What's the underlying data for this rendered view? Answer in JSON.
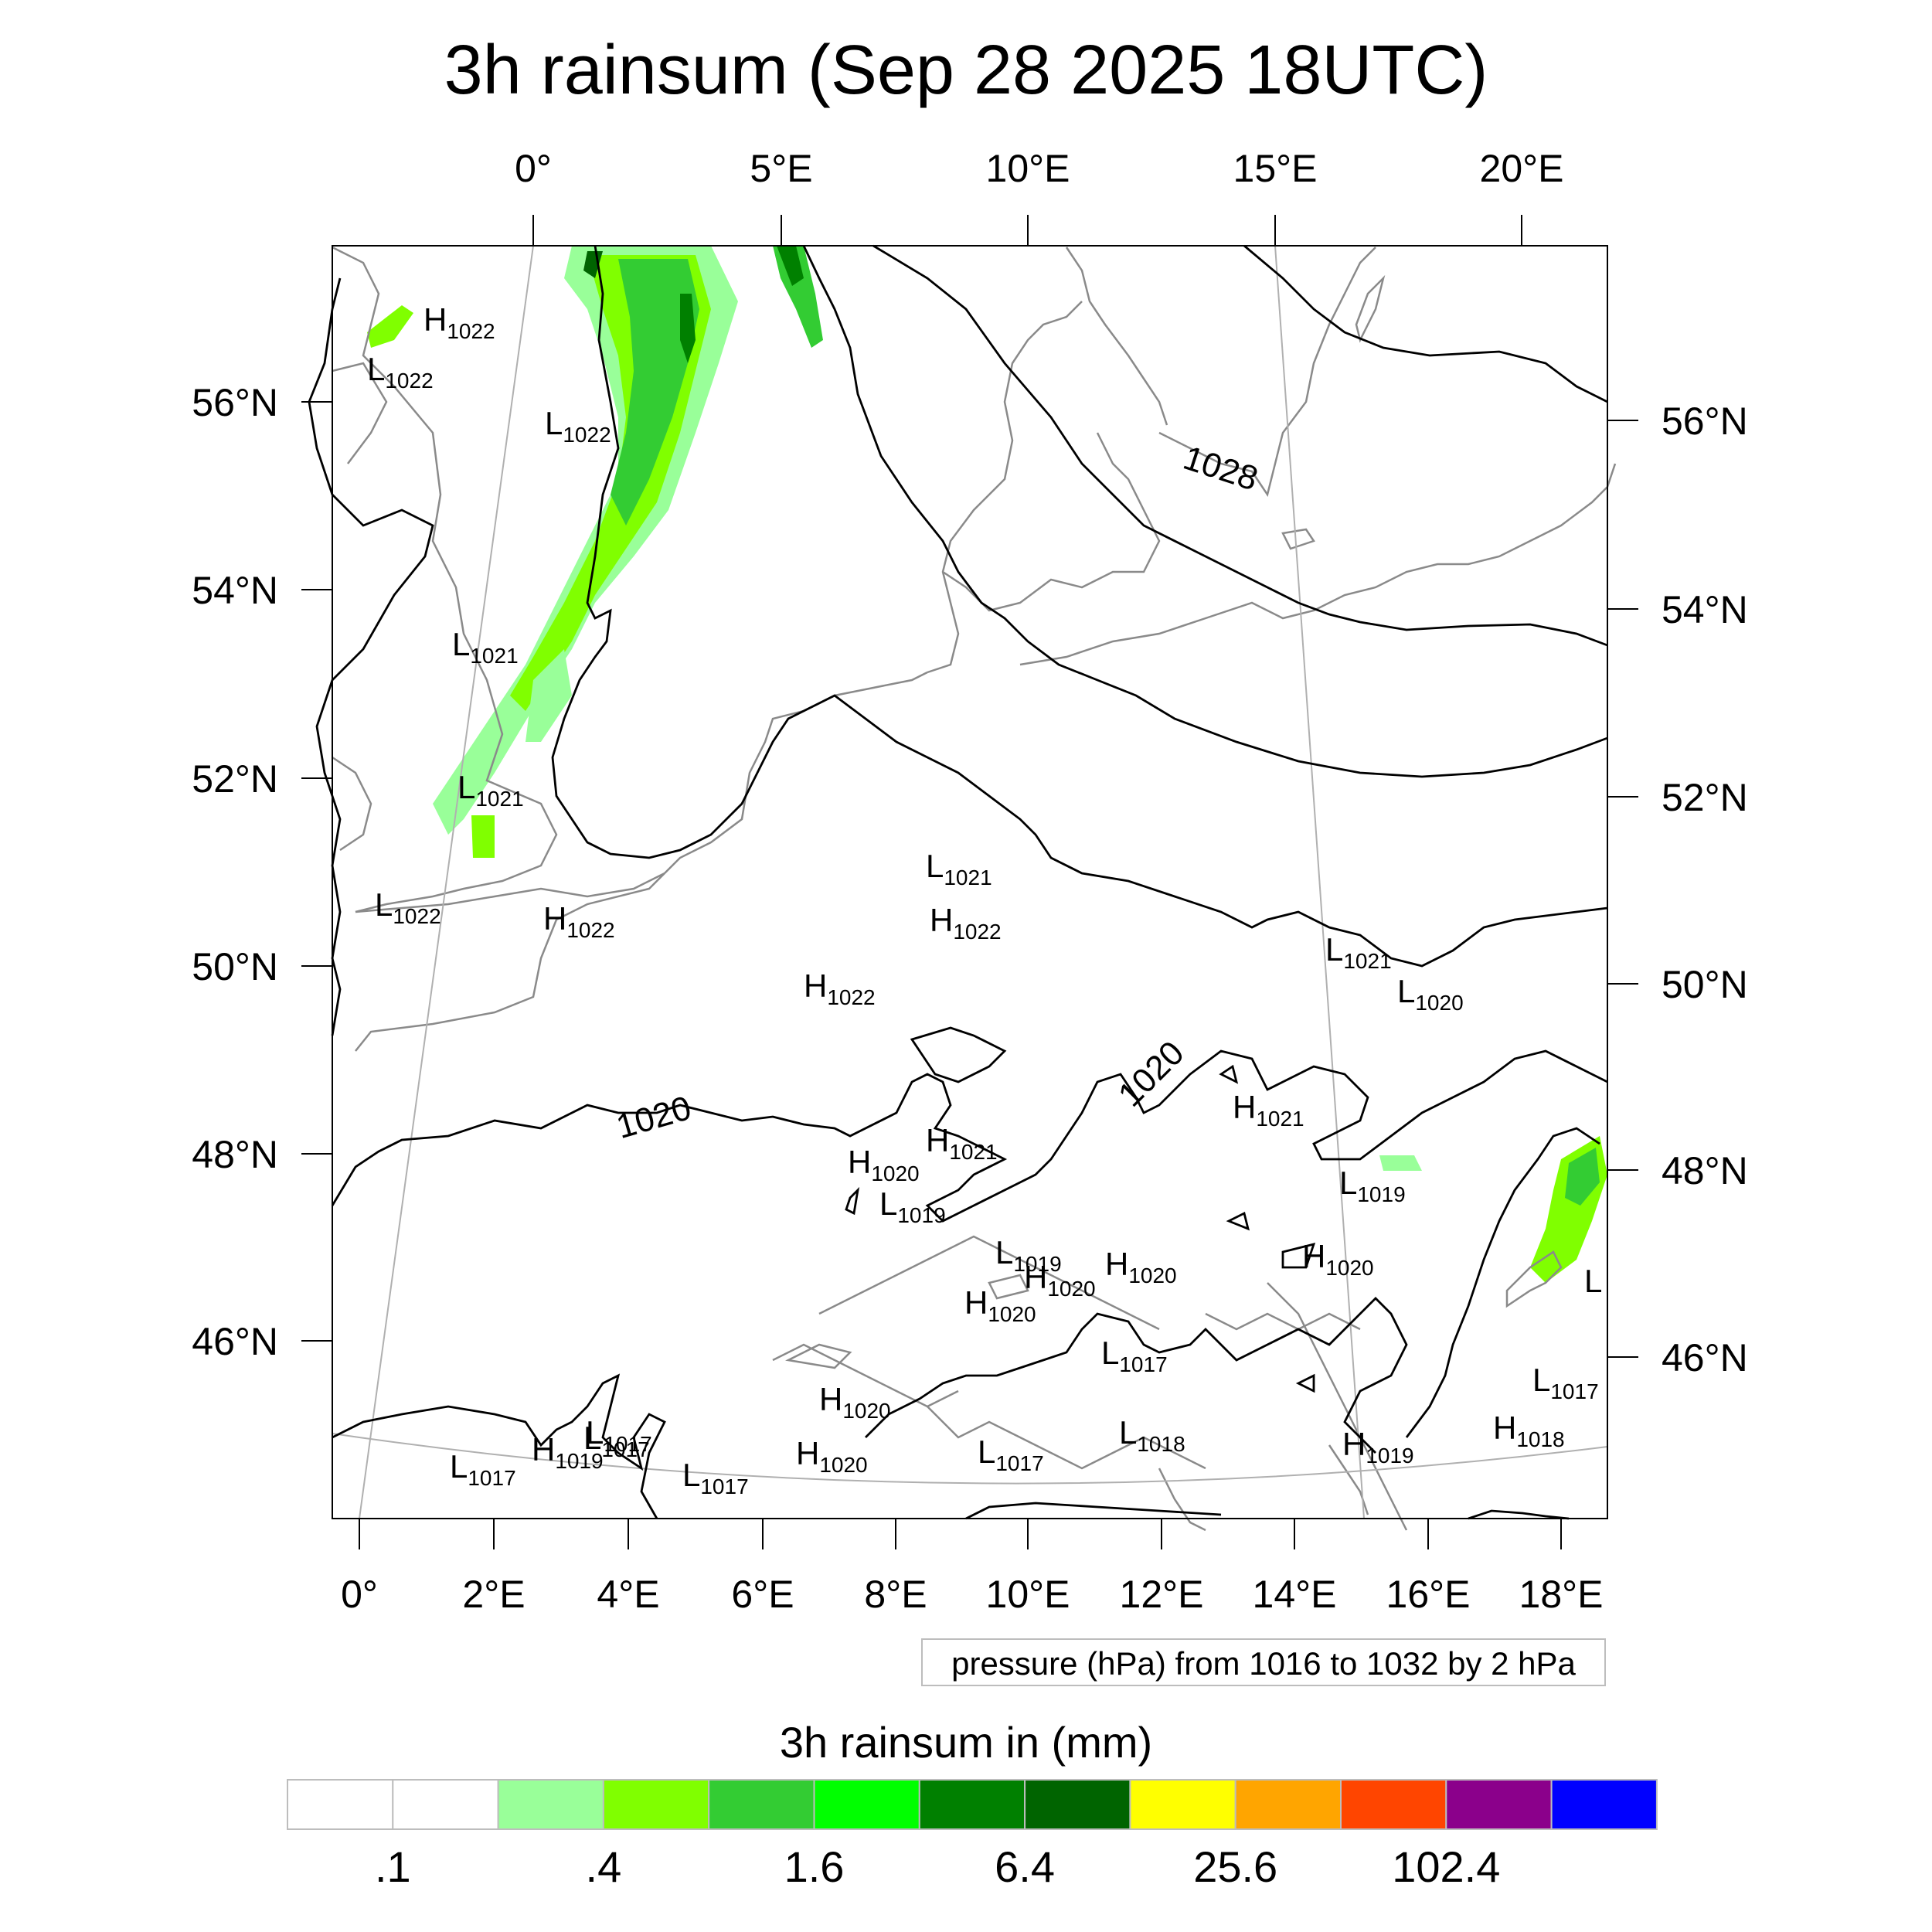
{
  "title": "3h rainsum (Sep 28 2025 18UTC)",
  "contour_info": "pressure (hPa) from 1016 to 1032 by 2 hPa",
  "colorbar": {
    "title": "3h rainsum in (mm)",
    "colors": [
      "#ffffff",
      "#ffffff",
      "#99ff99",
      "#80ff00",
      "#33cc33",
      "#00ff00",
      "#008000",
      "#006400",
      "#ffff00",
      "#ffa500",
      "#ff4500",
      "#8b008b",
      "#0000ff"
    ],
    "labels": [
      ".1",
      ".4",
      "1.6",
      "6.4",
      "25.6",
      "102.4"
    ]
  },
  "axes": {
    "top_lon": [
      "0°",
      "5°E",
      "10°E",
      "15°E",
      "20°E"
    ],
    "bottom_lon": [
      "0°",
      "2°E",
      "4°E",
      "6°E",
      "8°E",
      "10°E",
      "12°E",
      "14°E",
      "16°E",
      "18°E"
    ],
    "left_lat": [
      "56°N",
      "54°N",
      "52°N",
      "50°N",
      "48°N",
      "46°N"
    ],
    "right_lat": [
      "56°N",
      "54°N",
      "52°N",
      "50°N",
      "48°N",
      "46°N"
    ]
  },
  "contour_labels": [
    "1028",
    "1020",
    "1020"
  ],
  "pressure_centers": [
    {
      "t": "H",
      "v": "1022"
    },
    {
      "t": "L",
      "v": "1022"
    },
    {
      "t": "L",
      "v": "1022"
    },
    {
      "t": "L",
      "v": "1021"
    },
    {
      "t": "L",
      "v": "1021"
    },
    {
      "t": "L",
      "v": "1022"
    },
    {
      "t": "H",
      "v": "1022"
    },
    {
      "t": "L",
      "v": "1021"
    },
    {
      "t": "H",
      "v": "1022"
    },
    {
      "t": "H",
      "v": "1022"
    },
    {
      "t": "L",
      "v": "1021"
    },
    {
      "t": "L",
      "v": "1020"
    },
    {
      "t": "H",
      "v": "1021"
    },
    {
      "t": "H",
      "v": "1021"
    },
    {
      "t": "H",
      "v": "1020"
    },
    {
      "t": "L",
      "v": "1019"
    },
    {
      "t": "L",
      "v": "1019"
    },
    {
      "t": "L",
      "v": "1019"
    },
    {
      "t": "H",
      "v": "1020"
    },
    {
      "t": "H",
      "v": "1020"
    },
    {
      "t": "H",
      "v": "1020"
    },
    {
      "t": "H",
      "v": "1020"
    },
    {
      "t": "L",
      "v": "1017"
    },
    {
      "t": "H",
      "v": "1020"
    },
    {
      "t": "L",
      "v": "1017"
    },
    {
      "t": "H",
      "v": "1020"
    },
    {
      "t": "L",
      "v": "1018"
    },
    {
      "t": "L",
      "v": "1017"
    },
    {
      "t": "H",
      "v": "1019"
    },
    {
      "t": "L",
      "v": "1017"
    },
    {
      "t": "L",
      "v": "1017"
    },
    {
      "t": "L",
      "v": "1017"
    },
    {
      "t": "H",
      "v": "1019"
    },
    {
      "t": "H",
      "v": "1018"
    },
    {
      "t": "L",
      "v": "1017"
    },
    {
      "t": "L",
      "v": ""
    }
  ]
}
